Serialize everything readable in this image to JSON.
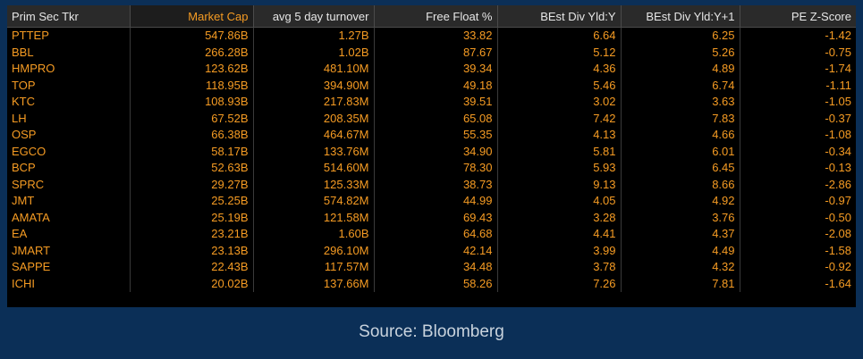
{
  "columns": [
    {
      "label": "Prim Sec Tkr",
      "align": "left"
    },
    {
      "label": "Market Cap",
      "align": "right",
      "sorted": true
    },
    {
      "label": "avg 5 day turnover",
      "align": "right"
    },
    {
      "label": "Free Float %",
      "align": "right"
    },
    {
      "label": "BEst Div Yld:Y",
      "align": "right"
    },
    {
      "label": "BEst Div Yld:Y+1",
      "align": "right"
    },
    {
      "label": "PE Z-Score",
      "align": "right"
    }
  ],
  "rows": [
    [
      "PTTEP",
      "547.86B",
      "1.27B",
      "33.82",
      "6.64",
      "6.25",
      "-1.42"
    ],
    [
      "BBL",
      "266.28B",
      "1.02B",
      "87.67",
      "5.12",
      "5.26",
      "-0.75"
    ],
    [
      "HMPRO",
      "123.62B",
      "481.10M",
      "39.34",
      "4.36",
      "4.89",
      "-1.74"
    ],
    [
      "TOP",
      "118.95B",
      "394.90M",
      "49.18",
      "5.46",
      "6.74",
      "-1.11"
    ],
    [
      "KTC",
      "108.93B",
      "217.83M",
      "39.51",
      "3.02",
      "3.63",
      "-1.05"
    ],
    [
      "LH",
      "67.52B",
      "208.35M",
      "65.08",
      "7.42",
      "7.83",
      "-0.37"
    ],
    [
      "OSP",
      "66.38B",
      "464.67M",
      "55.35",
      "4.13",
      "4.66",
      "-1.08"
    ],
    [
      "EGCO",
      "58.17B",
      "133.76M",
      "34.90",
      "5.81",
      "6.01",
      "-0.34"
    ],
    [
      "BCP",
      "52.63B",
      "514.60M",
      "78.30",
      "5.93",
      "6.45",
      "-0.13"
    ],
    [
      "SPRC",
      "29.27B",
      "125.33M",
      "38.73",
      "9.13",
      "8.66",
      "-2.86"
    ],
    [
      "JMT",
      "25.25B",
      "574.82M",
      "44.99",
      "4.05",
      "4.92",
      "-0.97"
    ],
    [
      "AMATA",
      "25.19B",
      "121.58M",
      "69.43",
      "3.28",
      "3.76",
      "-0.50"
    ],
    [
      "EA",
      "23.21B",
      "1.60B",
      "64.68",
      "4.41",
      "4.37",
      "-2.08"
    ],
    [
      "JMART",
      "23.13B",
      "296.10M",
      "42.14",
      "3.99",
      "4.49",
      "-1.58"
    ],
    [
      "SAPPE",
      "22.43B",
      "117.57M",
      "34.48",
      "3.78",
      "4.32",
      "-0.92"
    ],
    [
      "ICHI",
      "20.02B",
      "137.66M",
      "58.26",
      "7.26",
      "7.81",
      "-1.64"
    ]
  ],
  "footer": {
    "source_text": "Source: Bloomberg"
  },
  "colors": {
    "background": "#0b2f57",
    "panel": "#000000",
    "header_bg": "#2a2a2a",
    "header_text": "#e6e6e6",
    "value_text": "#f59b23"
  }
}
